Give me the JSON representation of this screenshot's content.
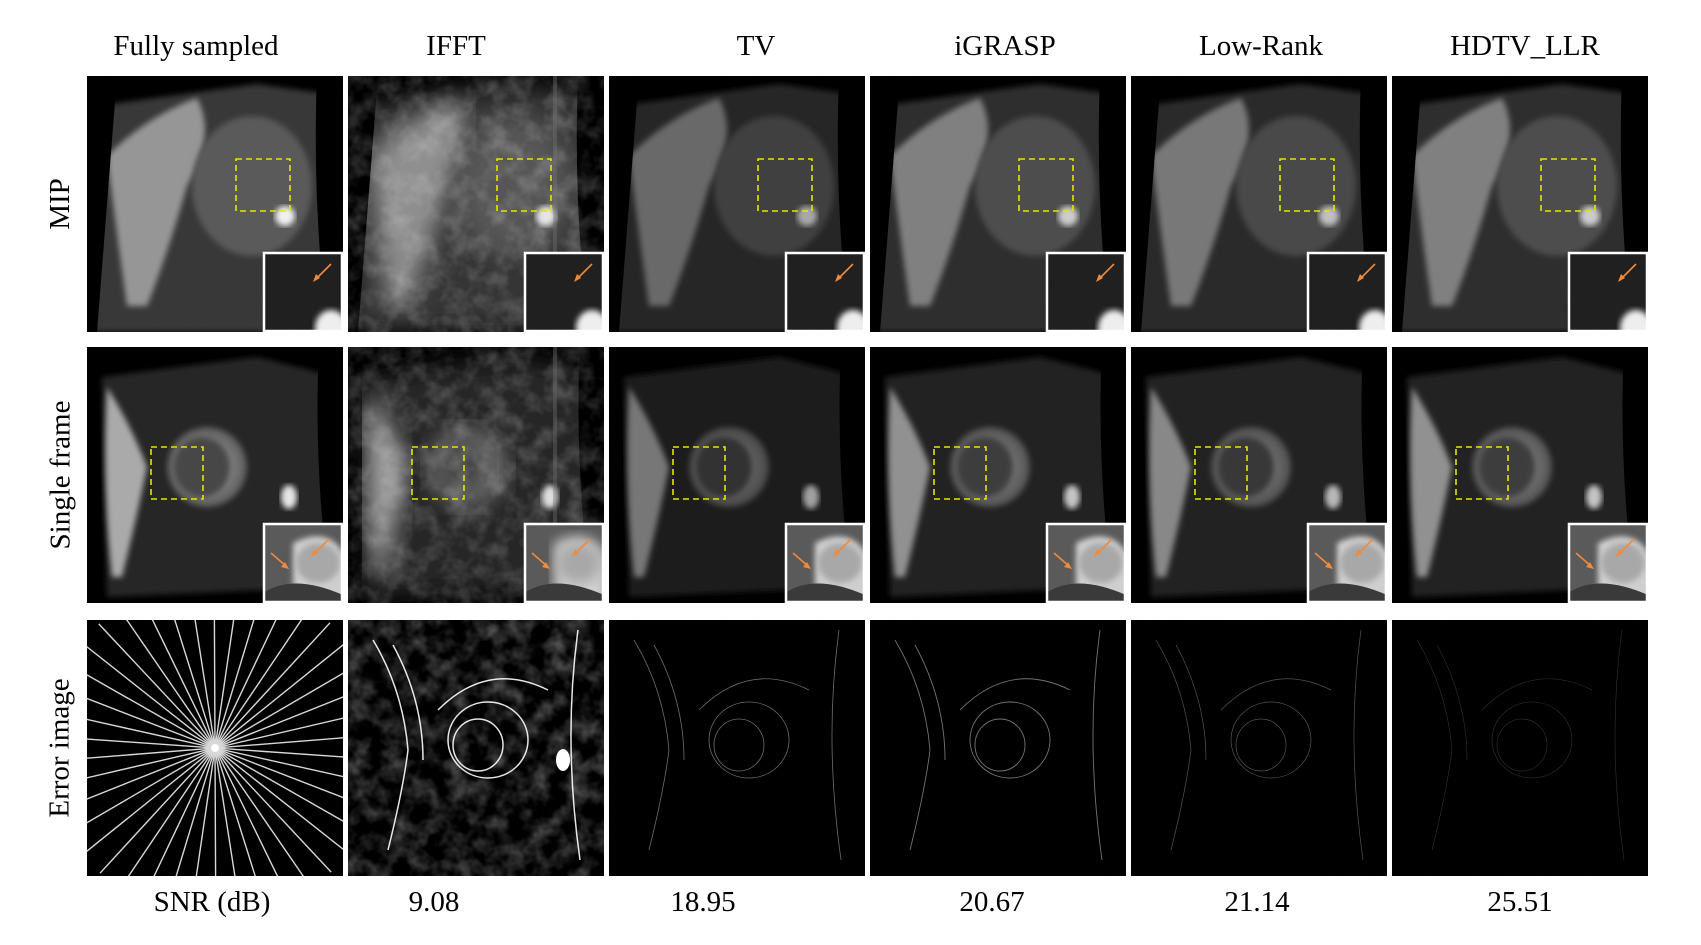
{
  "figure": {
    "columns": [
      "Fully sampled",
      "IFFT",
      "TV",
      "iGRASP",
      "Low-Rank",
      "HDTV_LLR"
    ],
    "rows": [
      "MIP",
      "Single frame",
      "Error image"
    ],
    "snr_label": "SNR (dB)",
    "snr_values": [
      "9.08",
      "18.95",
      "20.67",
      "21.14",
      "25.51"
    ]
  },
  "colors": {
    "roi_box": "#e6e600",
    "arrow": "#f08a3c",
    "panel_bg": "#000000",
    "inset_border": "#ffffff"
  },
  "icons": {
    "mask": "radial-sampling-lines-icon",
    "arrow": "orange-arrow-icon"
  }
}
